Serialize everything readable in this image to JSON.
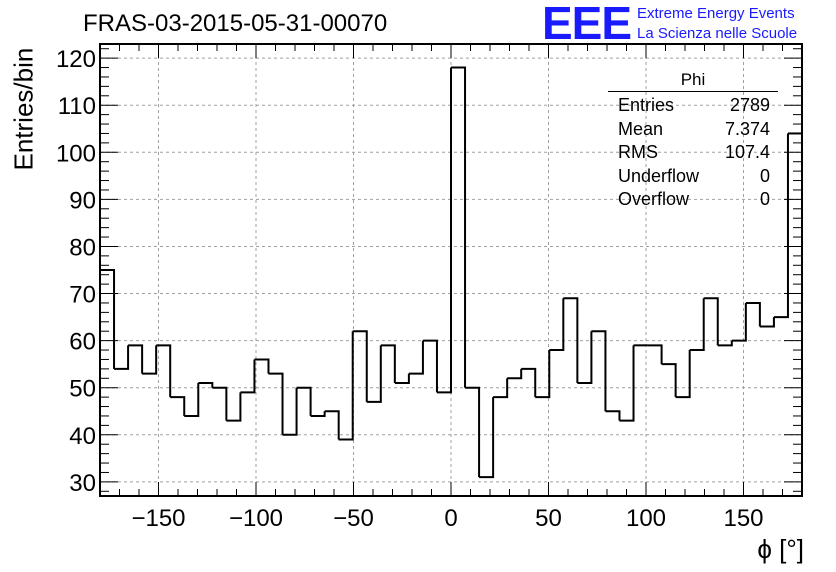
{
  "chart_data": {
    "type": "histogram",
    "title": "FRAS-03-2015-05-31-00070",
    "xlabel": "ϕ [°]",
    "ylabel": "Entries/bin",
    "xlim": [
      -180,
      180
    ],
    "ylim": [
      27,
      123
    ],
    "xticks": [
      -150,
      -100,
      -50,
      0,
      50,
      100,
      150
    ],
    "yticks": [
      30,
      40,
      50,
      60,
      70,
      80,
      90,
      100,
      110,
      120
    ],
    "grid": true,
    "bin_edges_start": -180,
    "bin_width": 7.2,
    "values": [
      75,
      54,
      59,
      53,
      59,
      48,
      44,
      51,
      50,
      43,
      49,
      56,
      53,
      40,
      50,
      44,
      45,
      39,
      62,
      47,
      59,
      51,
      53,
      60,
      49,
      118,
      50,
      31,
      48,
      52,
      54,
      48,
      58,
      69,
      51,
      62,
      45,
      43,
      59,
      59,
      55,
      48,
      58,
      69,
      59,
      60,
      68,
      63,
      65,
      104
    ],
    "legend": "top-right"
  },
  "stats": {
    "title": "Phi",
    "rows": [
      {
        "label": "Entries",
        "value": "2789"
      },
      {
        "label": "Mean",
        "value": "7.374"
      },
      {
        "label": "RMS",
        "value": "107.4"
      },
      {
        "label": "Underflow",
        "value": "0"
      },
      {
        "label": "Overflow",
        "value": "0"
      }
    ]
  },
  "logo": {
    "mark": "EEE",
    "line1": "Extreme Energy Events",
    "line2": "La Scienza nelle Scuole"
  },
  "colors": {
    "line": "#000000",
    "grid": "#a0a0a0",
    "logo": "#1a1aff"
  }
}
